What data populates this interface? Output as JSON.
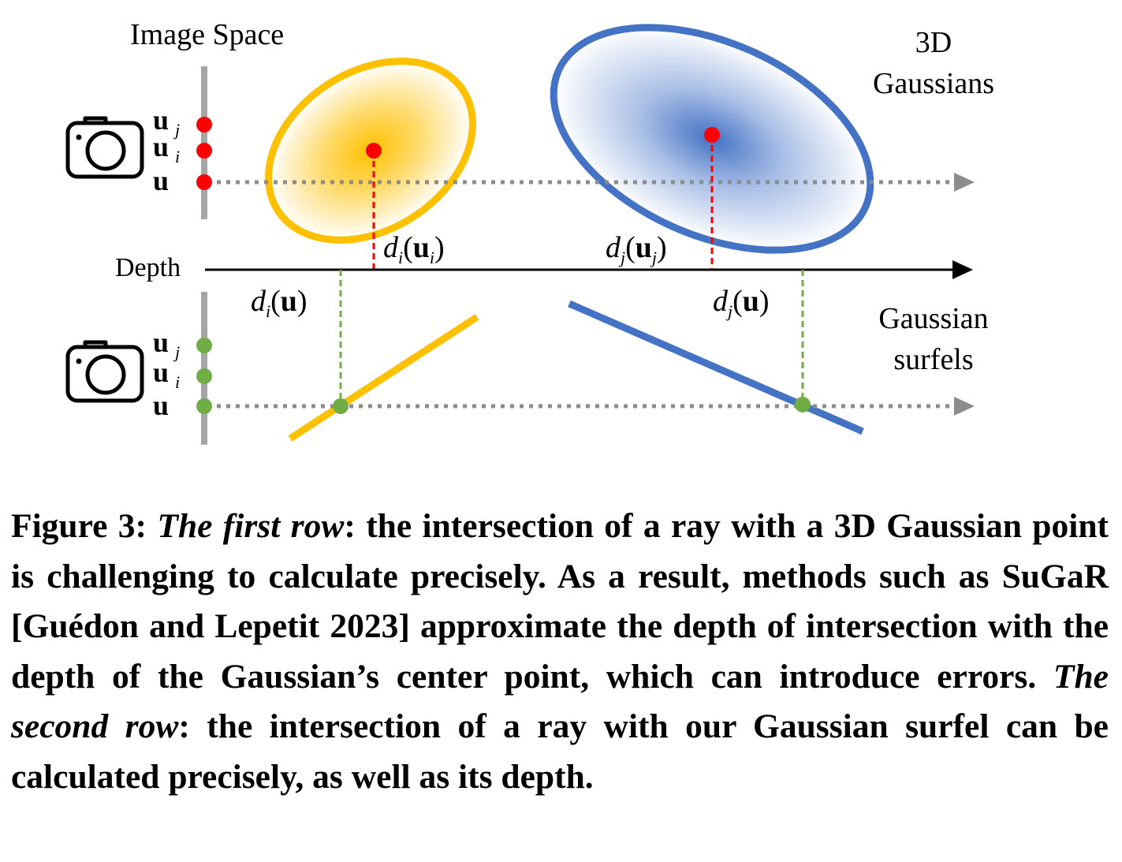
{
  "figure": {
    "labels": {
      "image_space": "Image Space",
      "gaussians_3d_line1": "3D",
      "gaussians_3d_line2": "Gaussians",
      "depth": "Depth",
      "surfels_line1": "Gaussian",
      "surfels_line2": "surfels"
    },
    "pixel_labels": {
      "u": "u",
      "i": "i",
      "j": "j"
    },
    "depth_labels": {
      "d": "d",
      "di_ui": {
        "sub": "i",
        "arg": "u",
        "arg_sub": "i"
      },
      "dj_uj": {
        "sub": "j",
        "arg": "u",
        "arg_sub": "j"
      },
      "di_u": {
        "sub": "i",
        "arg": "u"
      },
      "dj_u": {
        "sub": "j",
        "arg": "u"
      }
    },
    "colors": {
      "yellow": "#FFC000",
      "blue": "#4472C4",
      "red": "#FF0000",
      "green": "#70AD47",
      "gray": "#A6A6A6",
      "ray": "#8C8C8C"
    },
    "icons": [
      "camera-icon",
      "camera-icon"
    ]
  },
  "caption": {
    "label": "Figure 3:",
    "first_row_it": "The first row",
    "first_row_text": ": the intersection of a ray with a 3D Gaussian point is challenging to calculate precisely. As a result, methods such as SuGaR [Guédon and Lepetit 2023] approximate the depth of intersection with the depth of the Gaussian’s center point, which can introduce errors.",
    "second_row_it": "The second row",
    "second_row_text": ": the intersection of a ray with our Gaussian surfel can be calculated precisely, as well as its depth."
  }
}
